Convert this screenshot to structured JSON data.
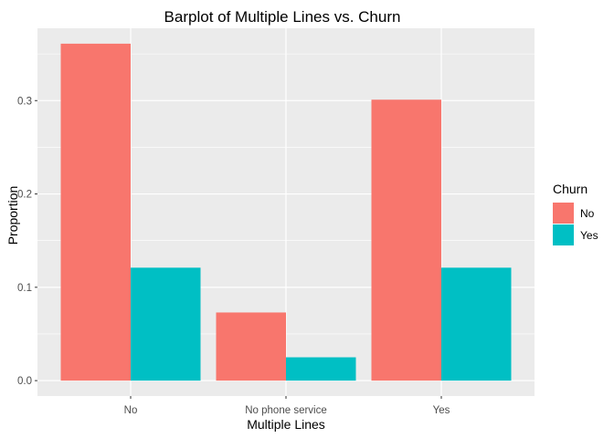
{
  "chart_data": {
    "type": "bar",
    "title": "Barplot of Multiple Lines vs. Churn",
    "xlabel": "Multiple Lines",
    "ylabel": "Proportion",
    "categories": [
      "No",
      "No phone service",
      "Yes"
    ],
    "series": [
      {
        "name": "No",
        "values": [
          0.361,
          0.073,
          0.301
        ],
        "color": "#F8766D"
      },
      {
        "name": "Yes",
        "values": [
          0.121,
          0.025,
          0.121
        ],
        "color": "#00BFC4"
      }
    ],
    "ylim": [
      -0.0165,
      0.3775
    ],
    "yticks": [
      0.0,
      0.1,
      0.2,
      0.3
    ],
    "ytick_labels": [
      "0.0",
      "0.1",
      "0.2",
      "0.3"
    ],
    "grid": true,
    "legend": {
      "title": "Churn",
      "position": "right"
    },
    "colors": {
      "panel": "#EBEBEB",
      "grid_major": "#FFFFFF"
    }
  }
}
